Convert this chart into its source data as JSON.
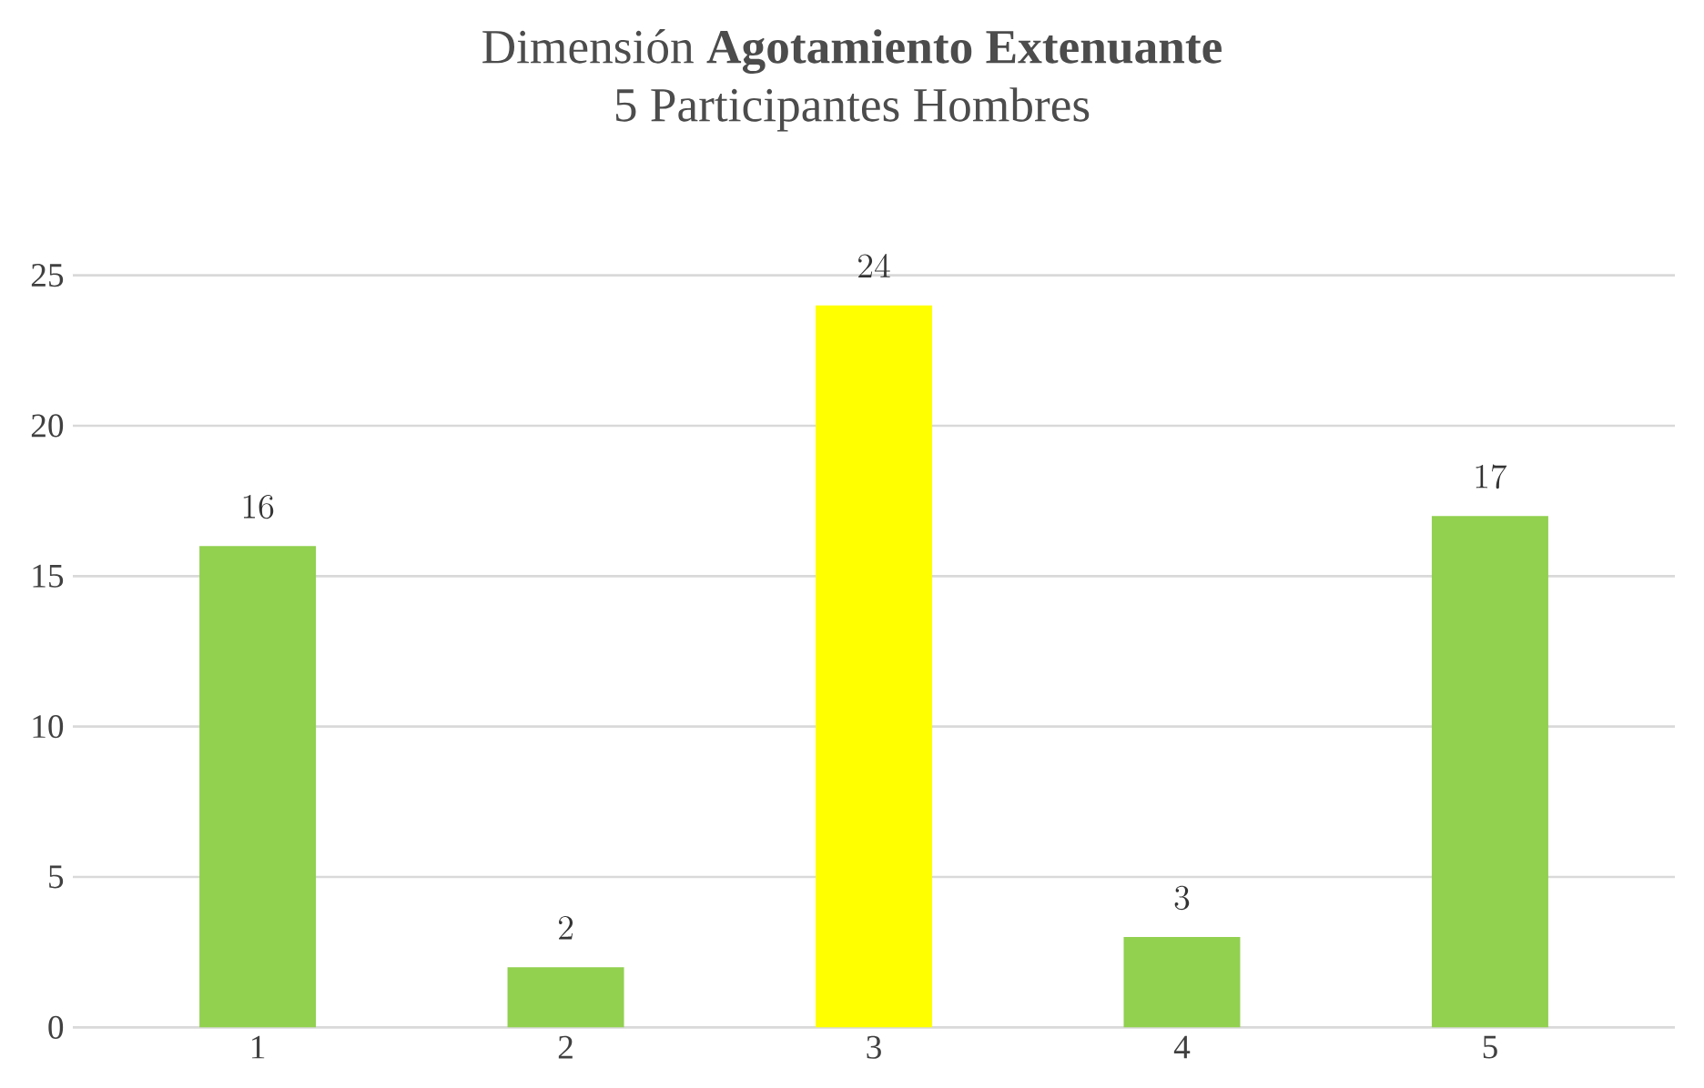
{
  "chart_data": {
    "type": "bar",
    "title": "Dimensión **Agotamiento Extenuante**",
    "subtitle": "5 Participantes Hombres",
    "categories": [
      "1",
      "2",
      "3",
      "4",
      "5"
    ],
    "values": [
      16,
      2,
      24,
      3,
      17
    ],
    "colors": [
      "#92d050",
      "#92d050",
      "#ffff00",
      "#92d050",
      "#92d050"
    ],
    "ylim": [
      0,
      25
    ],
    "yticks": [
      0,
      5,
      10,
      15,
      20,
      25
    ],
    "grid": "y",
    "data_labels": true
  }
}
